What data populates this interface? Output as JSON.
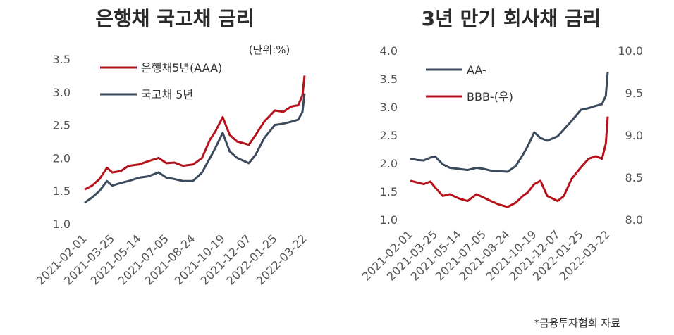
{
  "colors": {
    "red": "#b5121b",
    "navy": "#3b4a5c",
    "text": "#333333",
    "tick": "#555555"
  },
  "source_note": "*금융투자협회 자료",
  "chart_data": [
    {
      "type": "line",
      "title": "은행채 국고채 금리",
      "unit_label": "(단위:%)",
      "ylim": [
        1.0,
        3.5
      ],
      "yticks": [
        "1.0",
        "1.5",
        "2.0",
        "2.5",
        "3.0",
        "3.5"
      ],
      "xticks": [
        "2021-02-01",
        "2021-03-25",
        "2021-05-14",
        "2021-07-05",
        "2021-08-24",
        "2021-10-19",
        "2021-12-07",
        "2022-01-25",
        "2022-03-22"
      ],
      "x": [
        "2021-02-01",
        "2021-02-15",
        "2021-03-01",
        "2021-03-15",
        "2021-03-25",
        "2021-04-10",
        "2021-04-25",
        "2021-05-14",
        "2021-06-01",
        "2021-06-20",
        "2021-07-05",
        "2021-07-20",
        "2021-08-05",
        "2021-08-24",
        "2021-09-10",
        "2021-09-25",
        "2021-10-05",
        "2021-10-19",
        "2021-11-01",
        "2021-11-15",
        "2021-12-07",
        "2021-12-20",
        "2022-01-05",
        "2022-01-25",
        "2022-02-10",
        "2022-02-25",
        "2022-03-10",
        "2022-03-18",
        "2022-03-22"
      ],
      "series": [
        {
          "name": "은행채5년(AAA)",
          "color": "#b5121b",
          "values": [
            1.52,
            1.58,
            1.68,
            1.85,
            1.78,
            1.8,
            1.88,
            1.9,
            1.95,
            2.0,
            1.92,
            1.93,
            1.88,
            1.9,
            2.0,
            2.28,
            2.4,
            2.62,
            2.35,
            2.25,
            2.2,
            2.35,
            2.55,
            2.72,
            2.7,
            2.78,
            2.8,
            2.95,
            3.25
          ]
        },
        {
          "name": "국고채 5년",
          "color": "#3b4a5c",
          "values": [
            1.32,
            1.4,
            1.5,
            1.65,
            1.58,
            1.62,
            1.65,
            1.7,
            1.72,
            1.78,
            1.7,
            1.68,
            1.65,
            1.65,
            1.78,
            2.0,
            2.15,
            2.38,
            2.1,
            2.0,
            1.92,
            2.05,
            2.3,
            2.5,
            2.52,
            2.55,
            2.58,
            2.7,
            2.98
          ]
        }
      ]
    },
    {
      "type": "line",
      "title": "3년 만기 회사채 금리",
      "ylim": [
        1.0,
        4.0
      ],
      "yticks": [
        "1.0",
        "1.5",
        "2.0",
        "2.5",
        "3.0",
        "3.5",
        "4.0"
      ],
      "y2lim": [
        8.0,
        10.0
      ],
      "y2ticks": [
        "8.0",
        "8.5",
        "9.0",
        "9.5",
        "10.0"
      ],
      "xticks": [
        "2021-02-01",
        "2021-03-25",
        "2021-05-14",
        "2021-07-05",
        "2021-08-24",
        "2021-10-19",
        "2021-12-07",
        "2022-01-25",
        "2022-03-22"
      ],
      "x": [
        "2021-02-01",
        "2021-02-15",
        "2021-03-01",
        "2021-03-15",
        "2021-03-25",
        "2021-04-10",
        "2021-04-25",
        "2021-05-14",
        "2021-06-01",
        "2021-06-20",
        "2021-07-05",
        "2021-07-20",
        "2021-08-05",
        "2021-08-24",
        "2021-09-10",
        "2021-09-25",
        "2021-10-05",
        "2021-10-19",
        "2021-11-01",
        "2021-11-15",
        "2021-12-07",
        "2021-12-20",
        "2022-01-05",
        "2022-01-25",
        "2022-02-10",
        "2022-02-25",
        "2022-03-10",
        "2022-03-18",
        "2022-03-22"
      ],
      "series": [
        {
          "name": "AA-",
          "color": "#3b4a5c",
          "axis": "left",
          "values": [
            2.08,
            2.06,
            2.05,
            2.1,
            2.12,
            1.98,
            1.92,
            1.9,
            1.88,
            1.92,
            1.9,
            1.87,
            1.86,
            1.85,
            1.95,
            2.15,
            2.3,
            2.55,
            2.45,
            2.4,
            2.48,
            2.6,
            2.75,
            2.95,
            2.98,
            3.02,
            3.05,
            3.2,
            3.62
          ]
        },
        {
          "name": "BBB-(우)",
          "color": "#b5121b",
          "axis": "right",
          "values": [
            8.46,
            8.44,
            8.42,
            8.45,
            8.38,
            8.28,
            8.3,
            8.25,
            8.22,
            8.3,
            8.26,
            8.22,
            8.18,
            8.15,
            8.2,
            8.28,
            8.32,
            8.42,
            8.46,
            8.28,
            8.22,
            8.28,
            8.48,
            8.62,
            8.72,
            8.75,
            8.72,
            8.9,
            9.22
          ]
        }
      ]
    }
  ]
}
